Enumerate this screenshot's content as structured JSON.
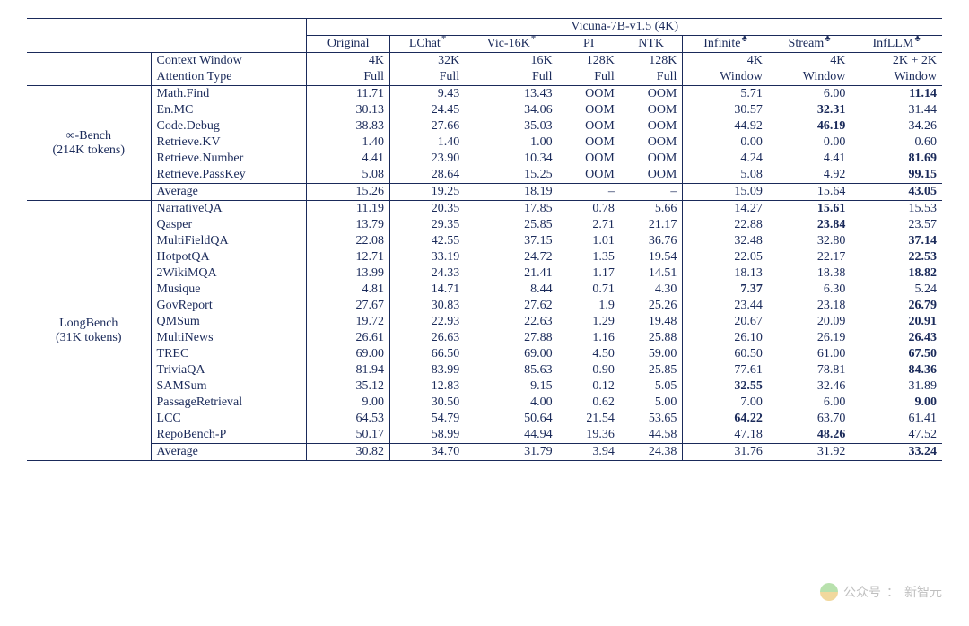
{
  "header": {
    "super": "Vicuna-7B-v1.5 (4K)",
    "cols": [
      "Original",
      "LChat",
      "Vic-16K",
      "PI",
      "NTK",
      "Infinite",
      "Stream",
      "InfLLM"
    ],
    "sup": [
      "",
      "*",
      "*",
      "",
      "",
      "♣",
      "♣",
      "♣"
    ],
    "sep_after": [
      0,
      4
    ]
  },
  "meta_rows": [
    {
      "label": "Context Window",
      "vals": [
        "4K",
        "32K",
        "16K",
        "128K",
        "128K",
        "4K",
        "4K",
        "2K + 2K"
      ]
    },
    {
      "label": "Attention Type",
      "vals": [
        "Full",
        "Full",
        "Full",
        "Full",
        "Full",
        "Window",
        "Window",
        "Window"
      ]
    }
  ],
  "sections": [
    {
      "group": "∞-Bench\n(214K tokens)",
      "rows": [
        {
          "label": "Math.Find",
          "vals": [
            "11.71",
            "9.43",
            "13.43",
            "OOM",
            "OOM",
            "5.71",
            "6.00",
            "11.14"
          ],
          "bold": [
            7
          ]
        },
        {
          "label": "En.MC",
          "vals": [
            "30.13",
            "24.45",
            "34.06",
            "OOM",
            "OOM",
            "30.57",
            "32.31",
            "31.44"
          ],
          "bold": [
            6
          ]
        },
        {
          "label": "Code.Debug",
          "vals": [
            "38.83",
            "27.66",
            "35.03",
            "OOM",
            "OOM",
            "44.92",
            "46.19",
            "34.26"
          ],
          "bold": [
            6
          ]
        },
        {
          "label": "Retrieve.KV",
          "vals": [
            "1.40",
            "1.40",
            "1.00",
            "OOM",
            "OOM",
            "0.00",
            "0.00",
            "0.60"
          ],
          "bold": []
        },
        {
          "label": "Retrieve.Number",
          "vals": [
            "4.41",
            "23.90",
            "10.34",
            "OOM",
            "OOM",
            "4.24",
            "4.41",
            "81.69"
          ],
          "bold": [
            7
          ]
        },
        {
          "label": "Retrieve.PassKey",
          "vals": [
            "5.08",
            "28.64",
            "15.25",
            "OOM",
            "OOM",
            "5.08",
            "4.92",
            "99.15"
          ],
          "bold": [
            7
          ]
        }
      ],
      "avg": {
        "label": "Average",
        "vals": [
          "15.26",
          "19.25",
          "18.19",
          "–",
          "–",
          "15.09",
          "15.64",
          "43.05"
        ],
        "bold": [
          7
        ]
      }
    },
    {
      "group": "LongBench\n(31K tokens)",
      "rows": [
        {
          "label": "NarrativeQA",
          "vals": [
            "11.19",
            "20.35",
            "17.85",
            "0.78",
            "5.66",
            "14.27",
            "15.61",
            "15.53"
          ],
          "bold": [
            6
          ]
        },
        {
          "label": "Qasper",
          "vals": [
            "13.79",
            "29.35",
            "25.85",
            "2.71",
            "21.17",
            "22.88",
            "23.84",
            "23.57"
          ],
          "bold": [
            6
          ]
        },
        {
          "label": "MultiFieldQA",
          "vals": [
            "22.08",
            "42.55",
            "37.15",
            "1.01",
            "36.76",
            "32.48",
            "32.80",
            "37.14"
          ],
          "bold": [
            7
          ]
        },
        {
          "label": "HotpotQA",
          "vals": [
            "12.71",
            "33.19",
            "24.72",
            "1.35",
            "19.54",
            "22.05",
            "22.17",
            "22.53"
          ],
          "bold": [
            7
          ]
        },
        {
          "label": "2WikiMQA",
          "vals": [
            "13.99",
            "24.33",
            "21.41",
            "1.17",
            "14.51",
            "18.13",
            "18.38",
            "18.82"
          ],
          "bold": [
            7
          ]
        },
        {
          "label": "Musique",
          "vals": [
            "4.81",
            "14.71",
            "8.44",
            "0.71",
            "4.30",
            "7.37",
            "6.30",
            "5.24"
          ],
          "bold": [
            5
          ]
        },
        {
          "label": "GovReport",
          "vals": [
            "27.67",
            "30.83",
            "27.62",
            "1.9",
            "25.26",
            "23.44",
            "23.18",
            "26.79"
          ],
          "bold": [
            7
          ]
        },
        {
          "label": "QMSum",
          "vals": [
            "19.72",
            "22.93",
            "22.63",
            "1.29",
            "19.48",
            "20.67",
            "20.09",
            "20.91"
          ],
          "bold": [
            7
          ]
        },
        {
          "label": "MultiNews",
          "vals": [
            "26.61",
            "26.63",
            "27.88",
            "1.16",
            "25.88",
            "26.10",
            "26.19",
            "26.43"
          ],
          "bold": [
            7
          ]
        },
        {
          "label": "TREC",
          "vals": [
            "69.00",
            "66.50",
            "69.00",
            "4.50",
            "59.00",
            "60.50",
            "61.00",
            "67.50"
          ],
          "bold": [
            7
          ]
        },
        {
          "label": "TriviaQA",
          "vals": [
            "81.94",
            "83.99",
            "85.63",
            "0.90",
            "25.85",
            "77.61",
            "78.81",
            "84.36"
          ],
          "bold": [
            7
          ]
        },
        {
          "label": "SAMSum",
          "vals": [
            "35.12",
            "12.83",
            "9.15",
            "0.12",
            "5.05",
            "32.55",
            "32.46",
            "31.89"
          ],
          "bold": [
            5
          ]
        },
        {
          "label": "PassageRetrieval",
          "vals": [
            "9.00",
            "30.50",
            "4.00",
            "0.62",
            "5.00",
            "7.00",
            "6.00",
            "9.00"
          ],
          "bold": [
            7
          ]
        },
        {
          "label": "LCC",
          "vals": [
            "64.53",
            "54.79",
            "50.64",
            "21.54",
            "53.65",
            "64.22",
            "63.70",
            "61.41"
          ],
          "bold": [
            5
          ]
        },
        {
          "label": "RepoBench-P",
          "vals": [
            "50.17",
            "58.99",
            "44.94",
            "19.36",
            "44.58",
            "47.18",
            "48.26",
            "47.52"
          ],
          "bold": [
            6
          ]
        }
      ],
      "avg": {
        "label": "Average",
        "vals": [
          "30.82",
          "34.70",
          "31.79",
          "3.94",
          "24.38",
          "31.76",
          "31.92",
          "33.24"
        ],
        "bold": [
          7
        ]
      }
    }
  ],
  "watermark": {
    "source_label": "公众号",
    "name": "新智元"
  }
}
